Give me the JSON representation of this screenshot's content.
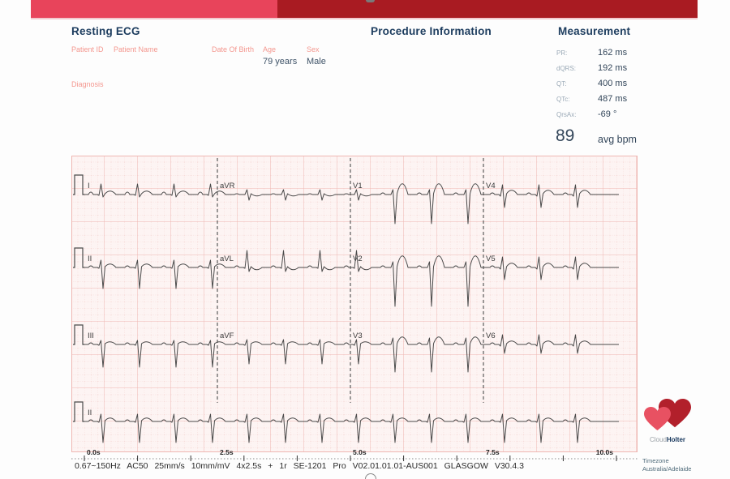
{
  "page": {
    "bg": "#fdfdfd"
  },
  "header": {
    "bar": {
      "left_color": "#e8445b",
      "right_color": "#a91b22",
      "underline_color": "#f2c9ce"
    }
  },
  "titles": {
    "resting_ecg": "Resting ECG",
    "procedure": "Procedure Information",
    "measurement": "Measurement"
  },
  "patient": {
    "fields": [
      {
        "label": "Patient ID",
        "value": ""
      },
      {
        "label": "Patient Name",
        "value": ""
      },
      {
        "label": "Date Of Birth",
        "value": ""
      },
      {
        "label": "Age",
        "value": "79 years"
      },
      {
        "label": "Sex",
        "value": "Male"
      }
    ],
    "diagnosis_label": "Diagnosis",
    "diagnosis_value": ""
  },
  "measurement": {
    "rows": [
      {
        "label": "PR:",
        "value": "162 ms"
      },
      {
        "label": "dQRS:",
        "value": "192 ms"
      },
      {
        "label": "QT:",
        "value": "400 ms"
      },
      {
        "label": "QTc:",
        "value": "487 ms"
      },
      {
        "label": "QrsAx:",
        "value": "-69 °"
      }
    ],
    "bpm_value": "89",
    "bpm_label": "avg bpm"
  },
  "ecg": {
    "rows": [
      {
        "leads": [
          "I",
          "aVR",
          "V1",
          "V4"
        ]
      },
      {
        "leads": [
          "II",
          "aVL",
          "V2",
          "V5"
        ]
      },
      {
        "leads": [
          "III",
          "aVF",
          "V3",
          "V6"
        ]
      },
      {
        "leads": [
          "II"
        ]
      }
    ],
    "baselines": [
      48,
      138,
      233,
      328
    ],
    "time_labels": [
      "0.0s",
      "2.5s",
      "5.0s",
      "7.5s",
      "10.0s"
    ],
    "settings_line": "0.67~150Hz  AC50  25mm/s 10mm/mV  4x2.5s + 1r  SE-1201 Pro V02.01.01.01-AUS001  GLASGOW V30.4.3",
    "colors": {
      "grid_bg": "#fdf4f3",
      "grid_minor": "#f3cdca",
      "grid_major": "#efb6b2",
      "trace": "#4a4a4a",
      "dashed": "#5a5a5a",
      "axis": "#333333"
    },
    "morphology": {
      "I": {
        "p": 3,
        "q": 1,
        "r": 13,
        "s": 3,
        "t": 4
      },
      "aVR": {
        "p": 1,
        "q": 0,
        "r": 6,
        "s": 7,
        "t": -2
      },
      "V1": {
        "p": 2,
        "q": 0,
        "r": 6,
        "s": 36,
        "t": 13
      },
      "V4": {
        "p": 2,
        "q": 2,
        "r": 12,
        "s": 16,
        "t": 5
      },
      "II": {
        "p": 2,
        "q": 1,
        "r": 9,
        "s": 26,
        "t": 4
      },
      "aVL": {
        "p": 2,
        "q": 1,
        "r": 21,
        "s": 5,
        "t": -3
      },
      "V2": {
        "p": 2,
        "q": 0,
        "r": 7,
        "s": 48,
        "t": 14
      },
      "V5": {
        "p": 2,
        "q": 2,
        "r": 13,
        "s": 15,
        "t": 5
      },
      "III": {
        "p": 2,
        "q": 1,
        "r": 5,
        "s": 28,
        "t": 3
      },
      "aVF": {
        "p": 2,
        "q": 1,
        "r": 6,
        "s": 24,
        "t": 3
      },
      "V3": {
        "p": 2,
        "q": 0,
        "r": 8,
        "s": 34,
        "t": 9
      },
      "V6": {
        "p": 2,
        "q": 2,
        "r": 12,
        "s": 11,
        "t": 4
      }
    }
  },
  "footer": {
    "logo": {
      "cloud": "Cloud",
      "holter": "Holter",
      "light_color": "#e85162",
      "dark_color": "#b2202b"
    },
    "timezone_label": "Timezone",
    "timezone_value": "Australia/Adelaide"
  }
}
